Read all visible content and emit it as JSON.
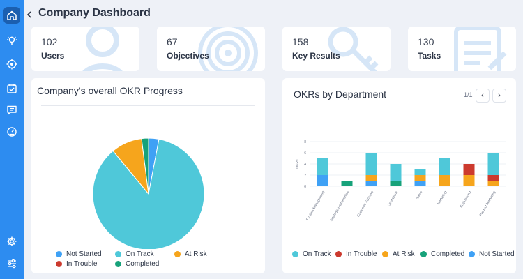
{
  "page_title": "Company Dashboard",
  "sidebar": {
    "top_items": [
      {
        "name": "home-icon"
      },
      {
        "name": "lightbulb-icon"
      },
      {
        "name": "target-icon"
      },
      {
        "name": "calendar-check-icon"
      },
      {
        "name": "chat-icon"
      },
      {
        "name": "dashboard-gauge-icon"
      }
    ],
    "bottom_items": [
      {
        "name": "gear-icon"
      },
      {
        "name": "sliders-icon"
      }
    ]
  },
  "stats": [
    {
      "value": "102",
      "label": "Users",
      "icon": "user-icon"
    },
    {
      "value": "67",
      "label": "Objectives",
      "icon": "target-icon"
    },
    {
      "value": "158",
      "label": "Key Results",
      "icon": "key-icon"
    },
    {
      "value": "130",
      "label": "Tasks",
      "icon": "task-list-icon"
    }
  ],
  "okr_progress": {
    "title": "Company's overall OKR Progress",
    "legend": [
      "Not Started",
      "On Track",
      "At Risk",
      "In Trouble",
      "Completed"
    ]
  },
  "okr_by_department": {
    "title": "OKRs by Department",
    "pager": "1/1",
    "legend": [
      "On Track",
      "In Trouble",
      "At Risk",
      "Completed",
      "Not Started"
    ]
  },
  "colors": {
    "sidebar": "#2d8cf0",
    "on_track": "#4fc8d9",
    "not_started": "#3fa1f5",
    "at_risk": "#f6a51c",
    "in_trouble": "#cc3a2e",
    "completed": "#17a27a"
  },
  "chart_data": [
    {
      "type": "pie",
      "title": "Company's overall OKR Progress",
      "labels": [
        "Not Started",
        "On Track",
        "At Risk",
        "In Trouble",
        "Completed"
      ],
      "values": [
        3,
        86,
        9,
        0,
        2
      ],
      "colors": [
        "#3fa1f5",
        "#4fc8d9",
        "#f6a51c",
        "#cc3a2e",
        "#17a27a"
      ],
      "legend": "bottom"
    },
    {
      "type": "bar",
      "stacked": true,
      "title": "OKRs by Department",
      "categories": [
        "Product Management",
        "Strategic Partnerships",
        "Customer Success",
        "Operations",
        "Sales",
        "Marketing",
        "Engineering",
        "Product Marketing"
      ],
      "ylabel": "OKRs",
      "ylim": [
        0,
        8
      ],
      "yticks": [
        0,
        2,
        4,
        6,
        8
      ],
      "series": [
        {
          "name": "Not Started",
          "color": "#3fa1f5",
          "values": [
            2,
            0,
            1,
            0,
            1,
            0,
            0,
            0
          ]
        },
        {
          "name": "Completed",
          "color": "#17a27a",
          "values": [
            0,
            1,
            0,
            1,
            0,
            0,
            0,
            0
          ]
        },
        {
          "name": "At Risk",
          "color": "#f6a51c",
          "values": [
            0,
            0,
            1,
            0,
            1,
            2,
            2,
            1
          ]
        },
        {
          "name": "In Trouble",
          "color": "#cc3a2e",
          "values": [
            0,
            0,
            0,
            0,
            0,
            0,
            2,
            1
          ]
        },
        {
          "name": "On Track",
          "color": "#4fc8d9",
          "values": [
            3,
            0,
            4,
            3,
            1,
            3,
            0,
            4
          ]
        }
      ],
      "legend": "bottom"
    }
  ]
}
